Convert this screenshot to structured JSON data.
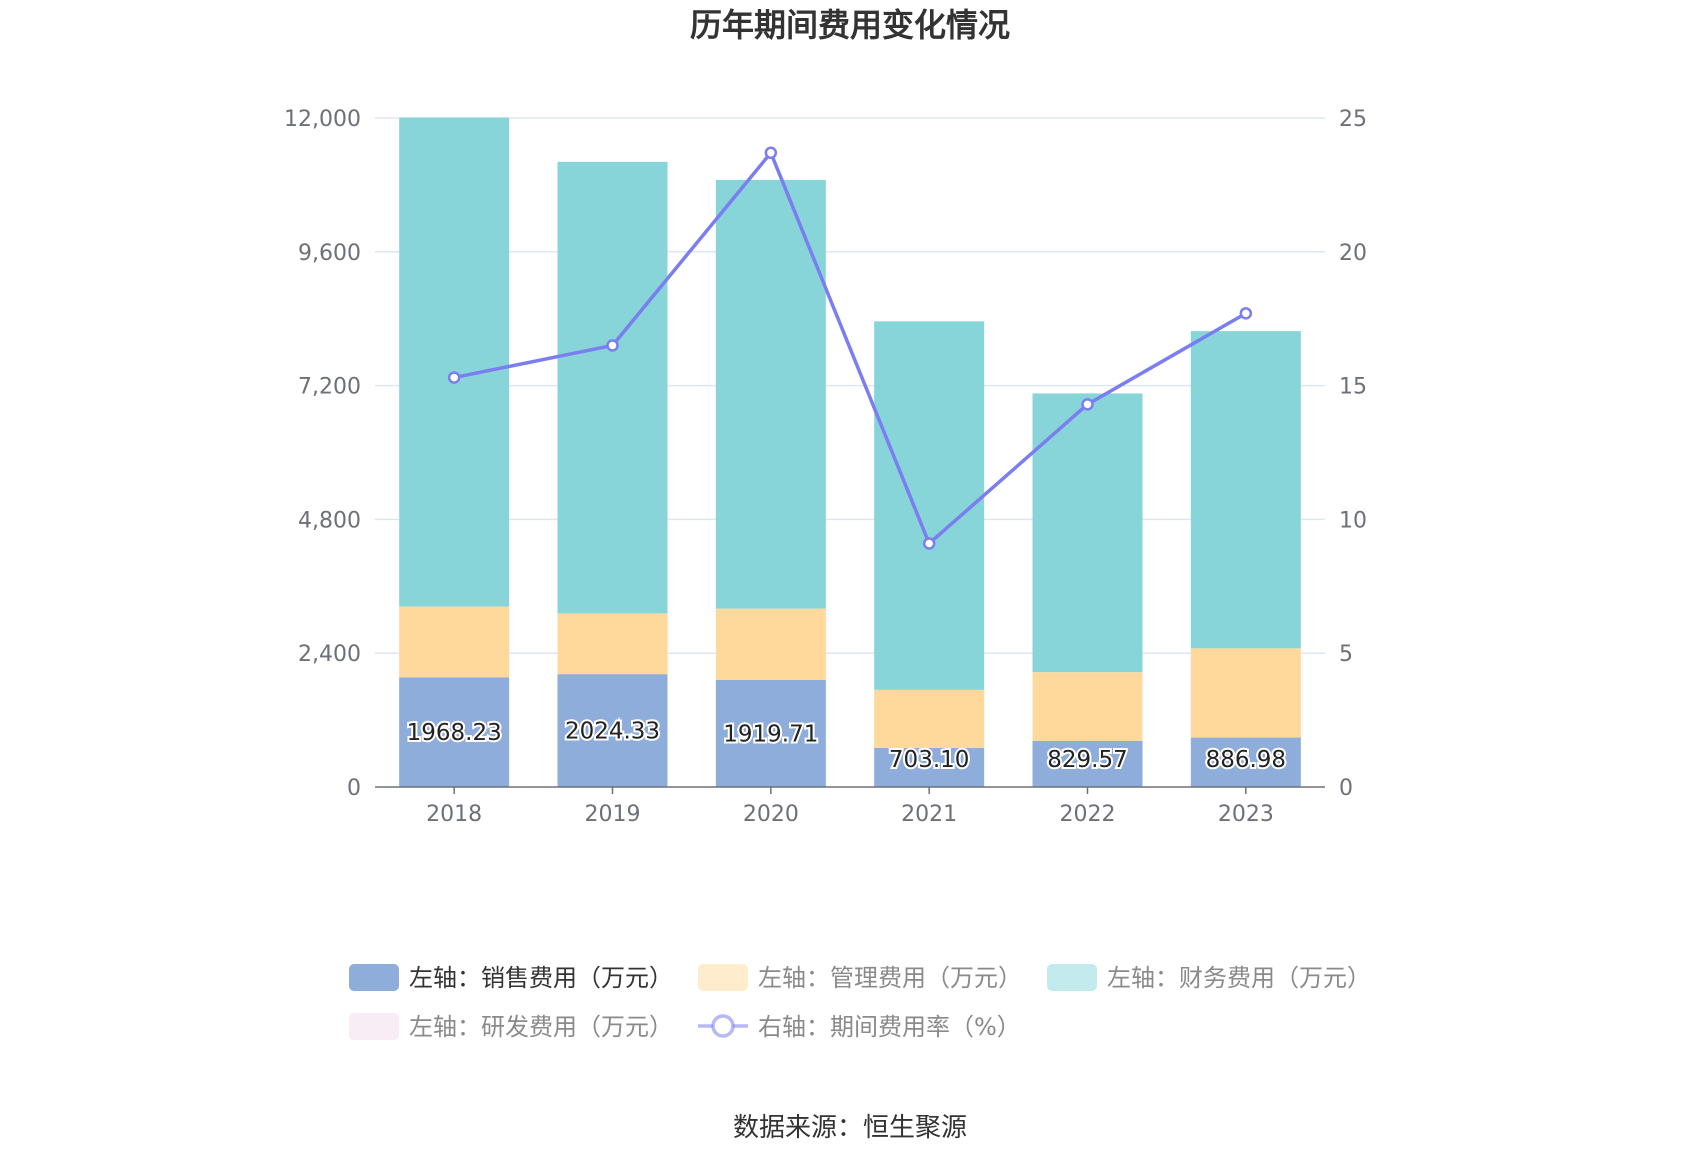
{
  "title": "历年期间费用变化情况",
  "source": "数据来源：恒生聚源",
  "chart_data": {
    "type": "bar",
    "stacked": true,
    "categories": [
      "2018",
      "2019",
      "2020",
      "2021",
      "2022",
      "2023"
    ],
    "y_left": {
      "min": 0,
      "max": 12000,
      "ticks": [
        "0",
        "2,400",
        "4,800",
        "7,200",
        "9,600",
        "12,000"
      ]
    },
    "y_right": {
      "min": 0,
      "max": 25,
      "ticks": [
        "0",
        "5",
        "10",
        "15",
        "20",
        "25"
      ]
    },
    "series": [
      {
        "name": "左轴：销售费用（万元）",
        "axis": "left",
        "kind": "bar",
        "color": "#8eadda",
        "values": [
          1968.23,
          2024.33,
          1919.71,
          703.1,
          829.57,
          886.98
        ],
        "labels": [
          "1968.23",
          "2024.33",
          "1919.71",
          "703.10",
          "829.57",
          "886.98"
        ]
      },
      {
        "name": "左轴：管理费用（万元）",
        "axis": "left",
        "kind": "bar",
        "color": "#fed99b",
        "values": [
          1270,
          1090,
          1280,
          1040,
          1230,
          1600
        ]
      },
      {
        "name": "左轴：财务费用（万元）",
        "axis": "left",
        "kind": "bar",
        "color": "#87d5d9",
        "values": [
          8770,
          8100,
          7690,
          6610,
          5000,
          5690
        ]
      },
      {
        "name": "左轴：研发费用（万元）",
        "axis": "left",
        "kind": "bar",
        "color": "#f2d9ec",
        "values": [
          0,
          0,
          0,
          0,
          0,
          0
        ]
      },
      {
        "name": "右轴：期间费用率（%）",
        "axis": "right",
        "kind": "line",
        "color": "#7b7ef0",
        "values": [
          15.3,
          16.5,
          23.7,
          9.1,
          14.3,
          17.7
        ]
      }
    ],
    "grid": true,
    "legend_position": "bottom"
  }
}
